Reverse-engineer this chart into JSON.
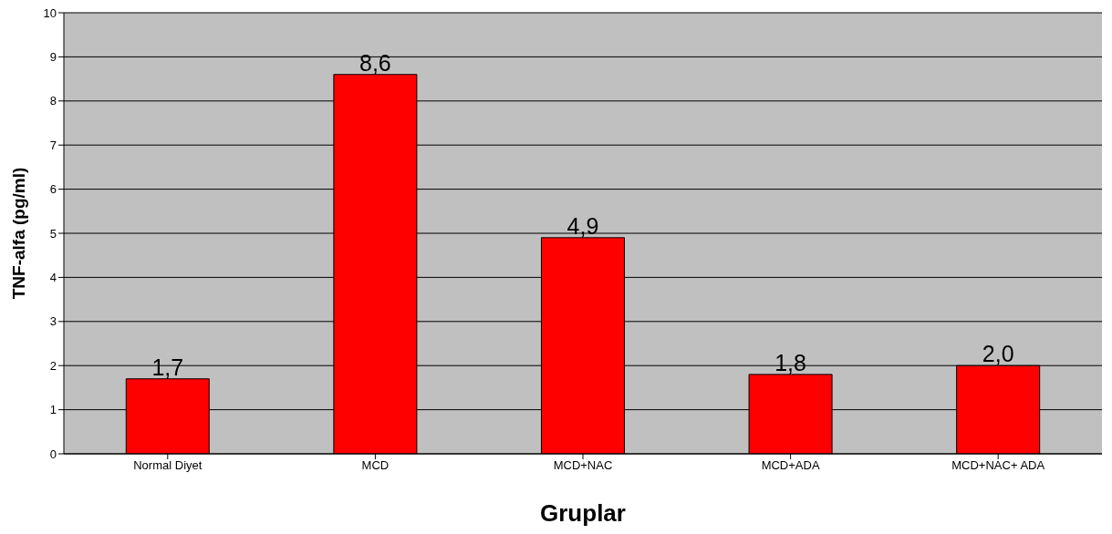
{
  "chart_data": {
    "type": "bar",
    "xlabel": "Gruplar",
    "ylabel": "TNF-alfa (pg/ml)",
    "categories": [
      "Normal Diyet",
      "MCD",
      "MCD+NAC",
      "MCD+ADA",
      "MCD+NAC+ ADA"
    ],
    "values": [
      1.7,
      8.6,
      4.9,
      1.8,
      2.0
    ],
    "value_labels": [
      "1,7",
      "8,6",
      "4,9",
      "1,8",
      "2,0"
    ],
    "color": "#ff0000",
    "ylim": [
      0,
      10
    ],
    "yticks": [
      0,
      1,
      2,
      3,
      4,
      5,
      6,
      7,
      8,
      9,
      10
    ],
    "grid": "y"
  }
}
